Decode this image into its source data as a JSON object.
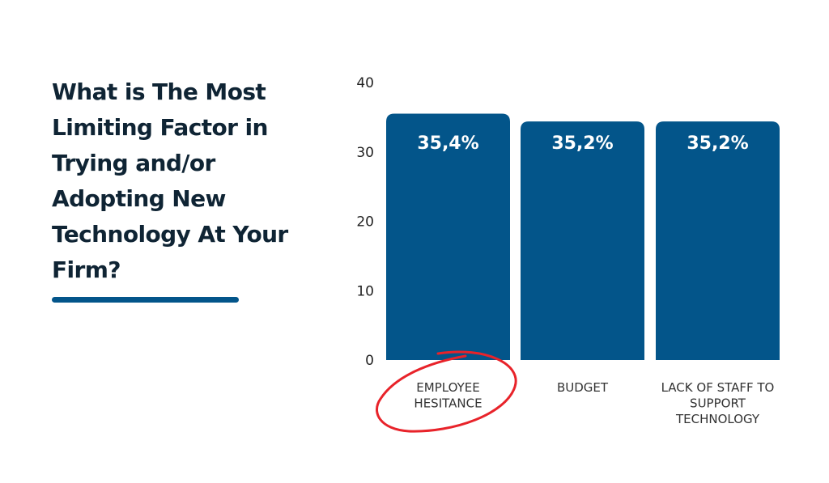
{
  "title_lines": [
    "What is The Most",
    "Limiting Factor in",
    "Trying and/or",
    "Adopting New",
    "Technology At Your",
    "Firm?"
  ],
  "colors": {
    "bar": "#03558a",
    "title": "#0f2434",
    "highlight_circle": "#e8232a"
  },
  "chart_data": {
    "type": "bar",
    "title": "What is The Most Limiting Factor in Trying and/or Adopting New Technology At Your Firm?",
    "categories": [
      [
        "EMPLOYEE",
        "HESITANCE"
      ],
      [
        "BUDGET"
      ],
      [
        "LACK OF STAFF TO",
        "SUPPORT",
        "TECHNOLOGY"
      ]
    ],
    "values": [
      35.4,
      35.2,
      35.2
    ],
    "data_labels": [
      "35,4%",
      "35,2%",
      "35,2%"
    ],
    "ylim": [
      0,
      40
    ],
    "yticks": [
      "0",
      "10",
      "20",
      "30",
      "40"
    ],
    "grid": false,
    "xlabel": "",
    "ylabel": "",
    "annotation": "red hand-drawn circle around EMPLOYEE HESITANCE"
  }
}
